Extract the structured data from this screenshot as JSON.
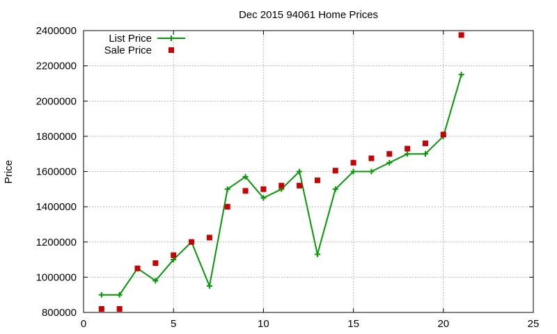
{
  "chart_data": {
    "type": "line",
    "title": "Dec 2015 94061 Home Prices",
    "xlabel": "",
    "ylabel": "Price",
    "xlim": [
      0,
      25
    ],
    "ylim": [
      800000,
      2400000
    ],
    "x_ticks": [
      0,
      5,
      10,
      15,
      20,
      25
    ],
    "y_ticks": [
      800000,
      1000000,
      1200000,
      1400000,
      1600000,
      1800000,
      2000000,
      2200000,
      2400000
    ],
    "grid": true,
    "legend_position": "top-left",
    "series": [
      {
        "name": "List Price",
        "style": "line-plus",
        "color": "#009900",
        "x": [
          1,
          2,
          3,
          4,
          5,
          6,
          7,
          8,
          9,
          10,
          11,
          12,
          13,
          14,
          15,
          16,
          17,
          18,
          19,
          20,
          21
        ],
        "values": [
          900000,
          900000,
          1050000,
          980000,
          1100000,
          1200000,
          950000,
          1500000,
          1570000,
          1450000,
          1500000,
          1600000,
          1130000,
          1500000,
          1600000,
          1600000,
          1650000,
          1700000,
          1700000,
          1800000,
          2150000
        ]
      },
      {
        "name": "Sale Price",
        "style": "square",
        "color": "#cc0000",
        "x": [
          1,
          2,
          3,
          4,
          5,
          6,
          7,
          8,
          9,
          10,
          11,
          12,
          13,
          14,
          15,
          16,
          17,
          18,
          19,
          20,
          21
        ],
        "values": [
          820000,
          820000,
          1050000,
          1080000,
          1125000,
          1200000,
          1225000,
          1400000,
          1490000,
          1500000,
          1520000,
          1520000,
          1550000,
          1605000,
          1650000,
          1675000,
          1700000,
          1730000,
          1760000,
          1810000,
          2375000
        ]
      }
    ]
  }
}
